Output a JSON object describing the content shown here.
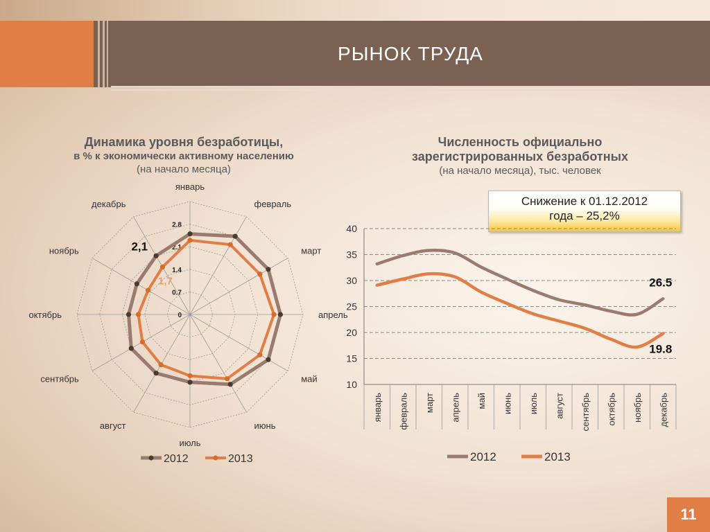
{
  "header": {
    "title": "РЫНОК ТРУДА"
  },
  "radar": {
    "title_line1": "Динамика уровня безработицы,",
    "title_line2": "в % к экономически активному населению",
    "title_line3": "(на начало месяца)",
    "value_label_2012": "2,1",
    "value_label_2013": "1,7"
  },
  "line": {
    "title_line1": "Численность официально",
    "title_line2": "зарегистрированных безработных",
    "title_line3": "(на начало месяца), тыс. человек",
    "callout_line1": "Снижение к 01.12.2012",
    "callout_line2": "года – 25,2%",
    "end_label_2012": "26.5",
    "end_label_2013": "19.8"
  },
  "page_number": "11",
  "colors": {
    "series_2012": "#9a7b70",
    "series_2013": "#e07e45",
    "accent": "#e07e45",
    "header": "#7b6152"
  },
  "chart_data": [
    {
      "type": "radar",
      "categories": [
        "январь",
        "февраль",
        "март",
        "апрель",
        "май",
        "июнь",
        "июль",
        "август",
        "сентябрь",
        "октябрь",
        "ноябрь",
        "декабрь"
      ],
      "ticks": [
        "0",
        "0.7",
        "1.4",
        "2.1",
        "2.8"
      ],
      "range": [
        0,
        3.5
      ],
      "series": [
        {
          "name": "2012",
          "values": [
            2.5,
            2.8,
            2.8,
            2.8,
            2.8,
            2.5,
            2.1,
            2.1,
            2.1,
            1.9,
            1.9,
            2.1
          ]
        },
        {
          "name": "2013",
          "values": [
            2.3,
            2.5,
            2.5,
            2.6,
            2.5,
            2.3,
            1.9,
            1.8,
            1.7,
            1.6,
            1.5,
            1.7
          ]
        }
      ],
      "legend": "bottom",
      "grid": true
    },
    {
      "type": "line",
      "categories": [
        "январь",
        "февраль",
        "март",
        "апрель",
        "май",
        "июнь",
        "июль",
        "август",
        "сентябрь",
        "октябрь",
        "ноябрь",
        "декабрь"
      ],
      "yticks": [
        "10",
        "15",
        "20",
        "25",
        "30",
        "35",
        "40"
      ],
      "ylim": [
        10,
        40
      ],
      "series": [
        {
          "name": "2012",
          "values": [
            33.2,
            34.8,
            35.8,
            35.3,
            32.6,
            30.3,
            28.1,
            26.3,
            25.3,
            24.1,
            23.5,
            26.5
          ]
        },
        {
          "name": "2013",
          "values": [
            29.1,
            30.3,
            31.3,
            30.7,
            27.8,
            25.6,
            23.6,
            22.2,
            20.8,
            18.7,
            17.2,
            19.8
          ]
        }
      ],
      "legend": "bottom",
      "grid": true
    }
  ]
}
